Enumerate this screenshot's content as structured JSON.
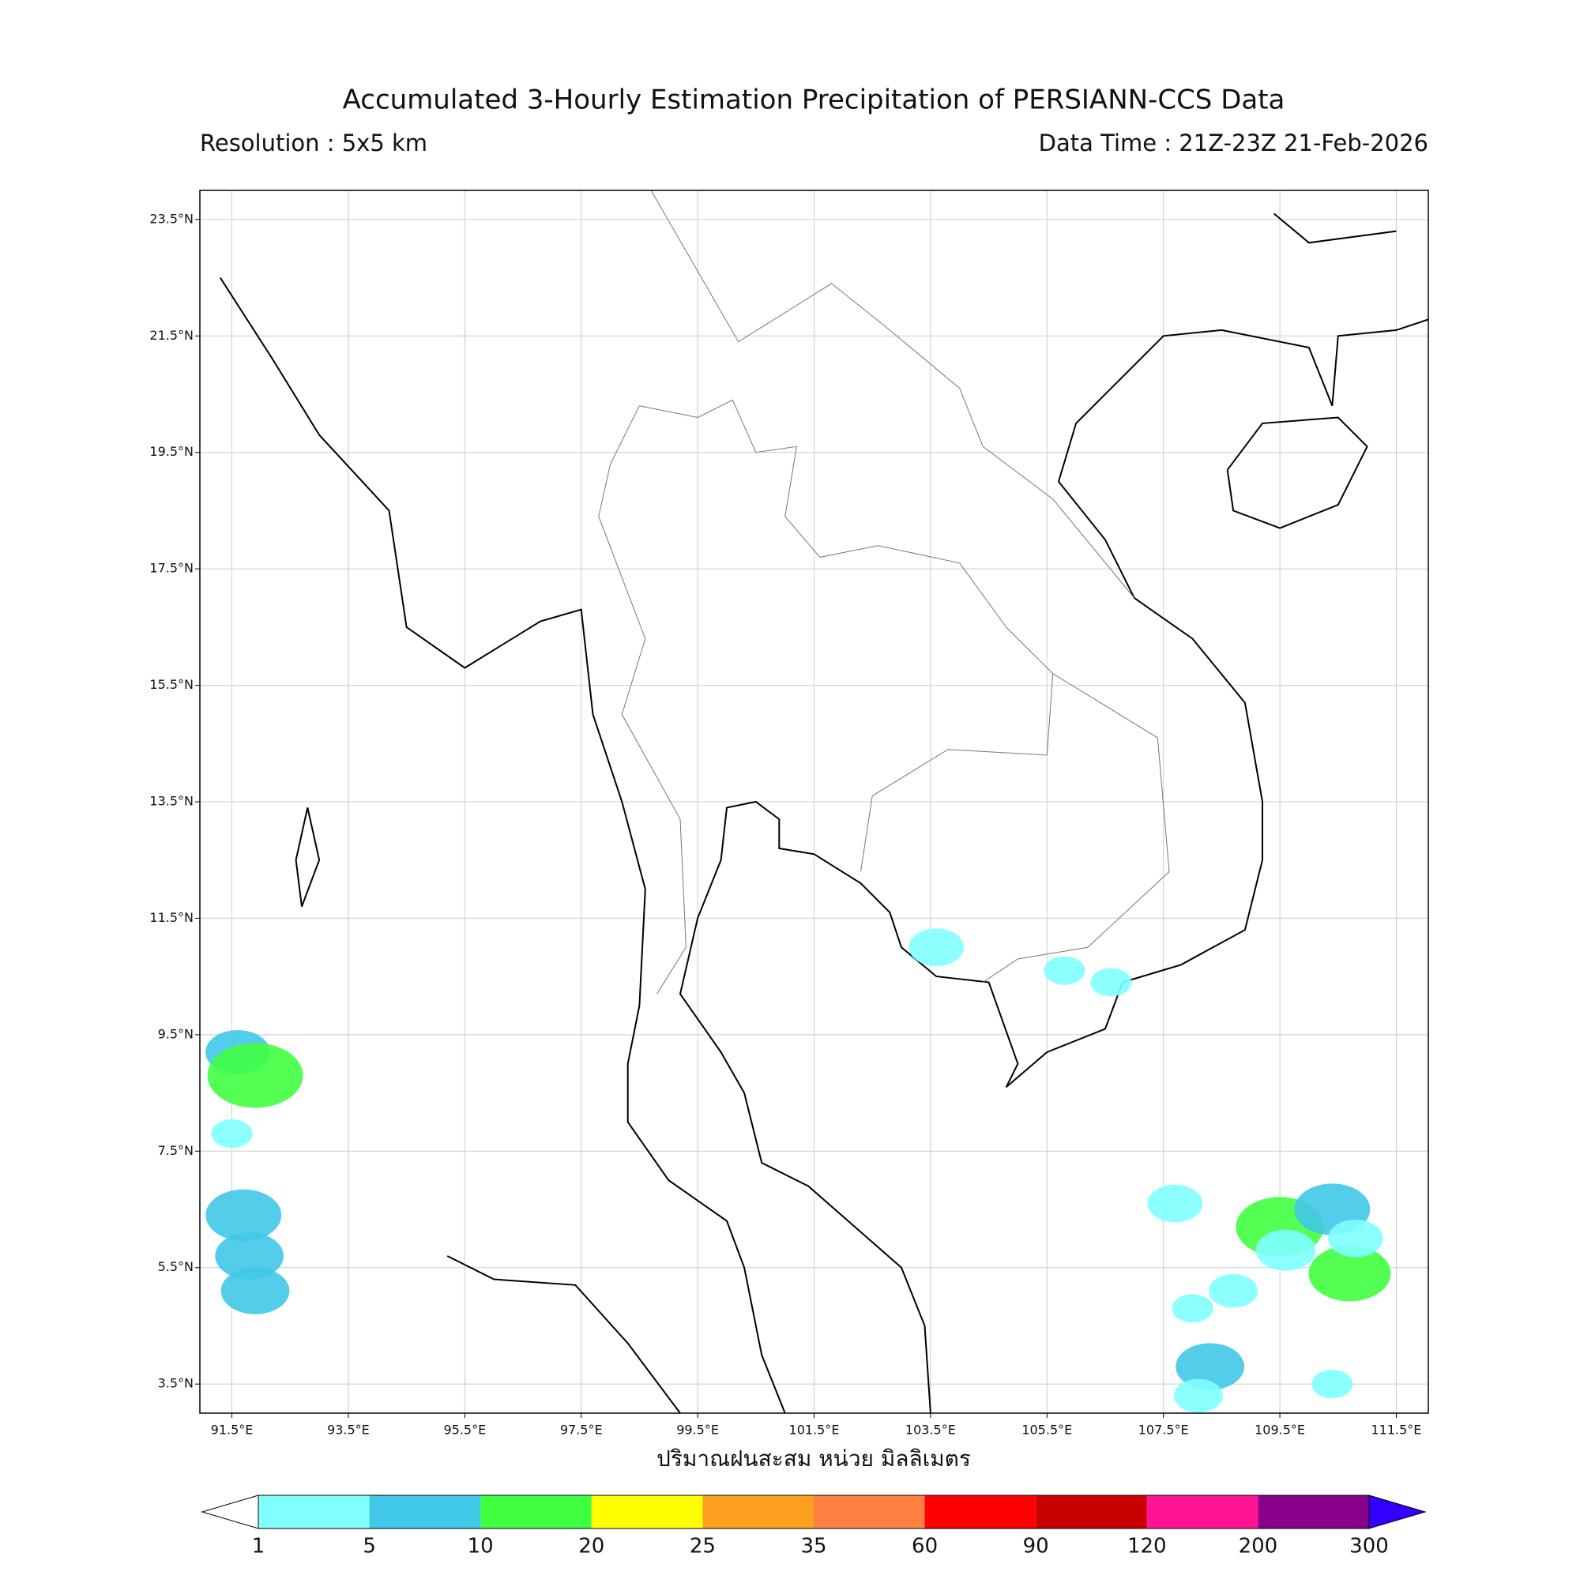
{
  "header": {
    "title": "Accumulated 3-Hourly Estimation Precipitation of PERSIANN-CCS Data",
    "resolution": "Resolution : 5x5 km",
    "data_time": "Data Time : 21Z-23Z 21-Feb-2026"
  },
  "map": {
    "xlim": [
      90.95,
      112.05
    ],
    "ylim": [
      3.0,
      24.0
    ],
    "grid": true,
    "xticks": [
      {
        "value": 91.5,
        "label": "91.5°E"
      },
      {
        "value": 93.5,
        "label": "93.5°E"
      },
      {
        "value": 95.5,
        "label": "95.5°E"
      },
      {
        "value": 97.5,
        "label": "97.5°E"
      },
      {
        "value": 99.5,
        "label": "99.5°E"
      },
      {
        "value": 101.5,
        "label": "101.5°E"
      },
      {
        "value": 103.5,
        "label": "103.5°E"
      },
      {
        "value": 105.5,
        "label": "105.5°E"
      },
      {
        "value": 107.5,
        "label": "107.5°E"
      },
      {
        "value": 109.5,
        "label": "109.5°E"
      },
      {
        "value": 111.5,
        "label": "111.5°E"
      }
    ],
    "yticks": [
      {
        "value": 3.5,
        "label": "3.5°N"
      },
      {
        "value": 5.5,
        "label": "5.5°N"
      },
      {
        "value": 7.5,
        "label": "7.5°N"
      },
      {
        "value": 9.5,
        "label": "9.5°N"
      },
      {
        "value": 11.5,
        "label": "11.5°N"
      },
      {
        "value": 13.5,
        "label": "13.5°N"
      },
      {
        "value": 15.5,
        "label": "15.5°N"
      },
      {
        "value": 17.5,
        "label": "17.5°N"
      },
      {
        "value": 19.5,
        "label": "19.5°N"
      },
      {
        "value": 21.5,
        "label": "21.5°N"
      },
      {
        "value": 23.5,
        "label": "23.5°N"
      }
    ],
    "xlabel": "ปริมาณฝนสะสม หน่วย มิลลิเมตร"
  },
  "rain_cells": {
    "lon": [
      91.6,
      91.9,
      91.5,
      91.7,
      91.8,
      91.9,
      103.6,
      109.5,
      109.6,
      110.4,
      110.7,
      108.3,
      108.1,
      108.7,
      108.0,
      110.8,
      110.4,
      106.6,
      105.8,
      107.7
    ],
    "lat": [
      9.2,
      8.8,
      7.8,
      6.4,
      5.7,
      5.1,
      11.0,
      6.2,
      5.8,
      6.5,
      5.4,
      3.8,
      3.3,
      5.1,
      4.8,
      6.0,
      3.5,
      10.4,
      10.6,
      6.6
    ],
    "values": [
      5,
      15,
      1,
      8,
      6,
      6,
      3,
      12,
      4,
      8,
      10,
      6,
      2,
      2,
      1,
      3,
      1,
      1,
      1,
      3
    ]
  },
  "colorbar": {
    "levels": [
      1,
      5,
      10,
      20,
      25,
      35,
      60,
      90,
      120,
      200,
      300
    ],
    "colors": [
      "#80ffff",
      "#40c8e8",
      "#40ff40",
      "#ffff00",
      "#ffa020",
      "#ff8040",
      "#ff0000",
      "#c80000",
      "#ff1493",
      "#8b008b"
    ],
    "under_color": "#ffffff",
    "over_color": "#3300ff"
  }
}
